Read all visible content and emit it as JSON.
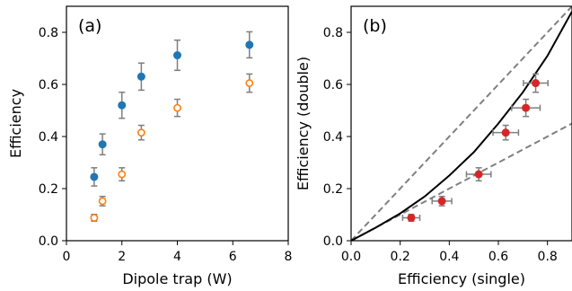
{
  "chart_data": [
    {
      "type": "scatter",
      "panel_label": "(a)",
      "xlabel": "Dipole trap (W)",
      "ylabel": "Efficiency",
      "xlim": [
        0,
        8
      ],
      "ylim": [
        0,
        0.9
      ],
      "x_ticks": [
        "0",
        "2",
        "4",
        "6",
        "8"
      ],
      "y_ticks": [
        "0.0",
        "0.2",
        "0.4",
        "0.6",
        "0.8"
      ],
      "x_tick_values": [
        0,
        2,
        4,
        6,
        8
      ],
      "y_tick_values": [
        0,
        0.2,
        0.4,
        0.6,
        0.8
      ],
      "grid": false,
      "series": [
        {
          "marker": "filled-circle",
          "color": "#1f77b4",
          "points": [
            {
              "x": 1.0,
              "y": 0.245,
              "err": 0.035
            },
            {
              "x": 1.3,
              "y": 0.37,
              "err": 0.04
            },
            {
              "x": 2.0,
              "y": 0.52,
              "err": 0.05
            },
            {
              "x": 2.7,
              "y": 0.63,
              "err": 0.052
            },
            {
              "x": 4.0,
              "y": 0.712,
              "err": 0.058
            },
            {
              "x": 6.6,
              "y": 0.752,
              "err": 0.05
            }
          ]
        },
        {
          "marker": "open-circle",
          "color": "#ff7f0e",
          "points": [
            {
              "x": 1.0,
              "y": 0.088,
              "err": 0.013
            },
            {
              "x": 1.3,
              "y": 0.152,
              "err": 0.018
            },
            {
              "x": 2.0,
              "y": 0.255,
              "err": 0.025
            },
            {
              "x": 2.7,
              "y": 0.415,
              "err": 0.028
            },
            {
              "x": 4.0,
              "y": 0.51,
              "err": 0.033
            },
            {
              "x": 6.6,
              "y": 0.605,
              "err": 0.035
            }
          ]
        }
      ]
    },
    {
      "type": "scatter",
      "panel_label": "(b)",
      "xlabel": "Efficiency (single)",
      "ylabel": "Efficiency (double)",
      "xlim": [
        0,
        0.9
      ],
      "ylim": [
        0,
        0.9
      ],
      "x_ticks": [
        "0.0",
        "0.2",
        "0.4",
        "0.6",
        "0.8"
      ],
      "y_ticks": [
        "0.0",
        "0.2",
        "0.4",
        "0.6",
        "0.8"
      ],
      "x_tick_values": [
        0,
        0.2,
        0.4,
        0.6,
        0.8
      ],
      "y_tick_values": [
        0,
        0.2,
        0.4,
        0.6,
        0.8
      ],
      "grid": false,
      "series": [
        {
          "marker": "filled-circle",
          "color": "#d62728",
          "points": [
            {
              "x": 0.245,
              "y": 0.088,
              "xerr": 0.035,
              "yerr": 0.013
            },
            {
              "x": 0.37,
              "y": 0.152,
              "xerr": 0.04,
              "yerr": 0.018
            },
            {
              "x": 0.52,
              "y": 0.255,
              "xerr": 0.05,
              "yerr": 0.025
            },
            {
              "x": 0.63,
              "y": 0.415,
              "xerr": 0.052,
              "yerr": 0.028
            },
            {
              "x": 0.712,
              "y": 0.51,
              "xerr": 0.058,
              "yerr": 0.033
            },
            {
              "x": 0.752,
              "y": 0.605,
              "xerr": 0.05,
              "yerr": 0.035
            }
          ]
        }
      ],
      "reference_lines": [
        {
          "style": "dashed",
          "color": "#808080",
          "slope": 1.0
        },
        {
          "style": "dashed",
          "color": "#808080",
          "slope": 0.5
        }
      ],
      "reference_curves": [
        {
          "style": "solid",
          "color": "#000000",
          "points": [
            [
              0,
              0
            ],
            [
              0.1,
              0.05
            ],
            [
              0.2,
              0.105
            ],
            [
              0.3,
              0.17
            ],
            [
              0.4,
              0.25
            ],
            [
              0.5,
              0.34
            ],
            [
              0.6,
              0.45
            ],
            [
              0.7,
              0.57
            ],
            [
              0.8,
              0.71
            ],
            [
              0.9,
              0.88
            ]
          ]
        }
      ]
    }
  ]
}
